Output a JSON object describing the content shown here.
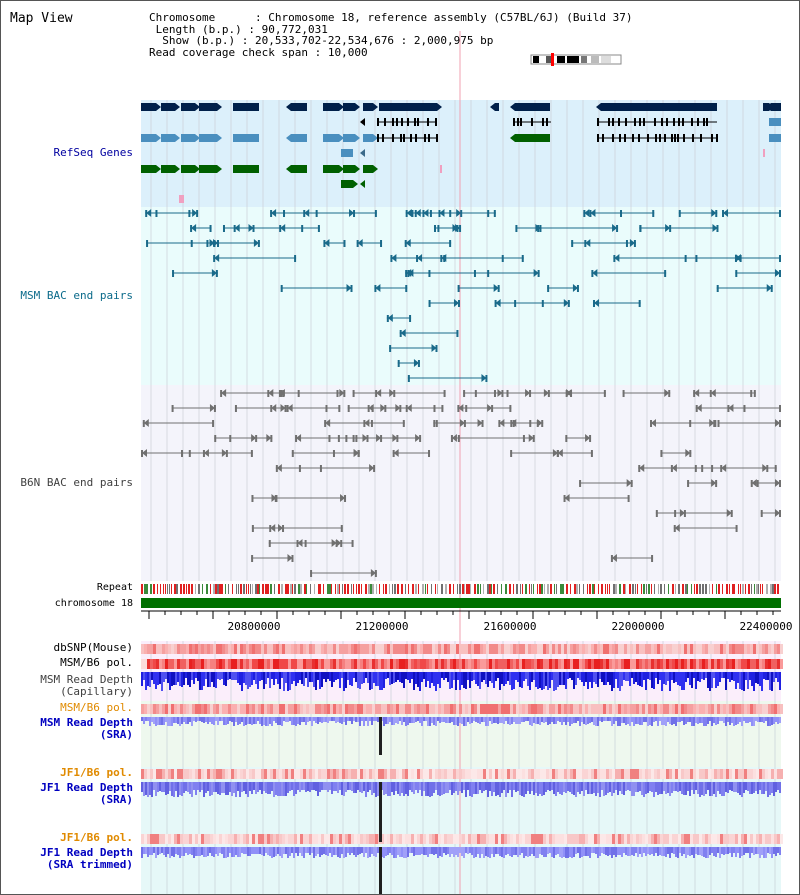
{
  "title": "Map View",
  "info": {
    "chromosome_key": "Chromosome",
    "chromosome_value": "Chromosome 18, reference assembly (C57BL/6J) (Build 37)",
    "length_key": "Length (b.p.)",
    "length_value": "90,772,031",
    "show_key": "Show (b.p.)",
    "show_value": "20,533,702-22,534,676 : 2,000,975 bp",
    "coverage_key": "Read coverage check span",
    "coverage_value": "10,000"
  },
  "tracks": {
    "refseq": "RefSeq Genes",
    "msm_bac": "MSM BAC end pairs",
    "b6n_bac": "B6N BAC end pairs",
    "repeat": "Repeat",
    "chromosome": "chromosome 18",
    "dbsnp": "dbSNP(Mouse)",
    "msm_b6_pol_1": "MSM/B6 pol.",
    "msm_depth_cap_1": "MSM Read Depth",
    "msm_depth_cap_2": "(Capillary)",
    "msm_b6_pol_2": "MSM/B6 pol.",
    "msm_depth_sra_1": "MSM Read Depth",
    "msm_depth_sra_2": "(SRA)",
    "jf1_b6_pol_1": "JF1/B6 pol.",
    "jf1_depth_sra_1": "JF1 Read Depth",
    "jf1_depth_sra_2": "(SRA)",
    "jf1_b6_pol_2": "JF1/B6 pol.",
    "jf1_depth_trim_1": "JF1 Read Depth",
    "jf1_depth_trim_2": "(SRA trimmed)"
  },
  "axis": {
    "ticks": [
      "20800000",
      "21200000",
      "21600000",
      "22000000",
      "22400000"
    ]
  },
  "colors": {
    "refseq_label": "#0000a0",
    "msm_bac_label": "#0a6a8a",
    "orange_label": "#e08a00",
    "blue_label": "#0000c0",
    "gene_dark": "#00204a",
    "gene_mid": "#4a8fbf",
    "gene_green": "#006000",
    "msm_bac": "#1a6a8a",
    "b6n_bac": "#707070",
    "chromosome_bar": "#007000"
  }
}
